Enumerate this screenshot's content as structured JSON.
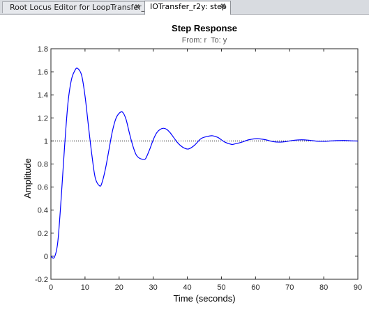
{
  "tabs": [
    {
      "label": "Root Locus Editor for LoopTransfer_C",
      "close": "✖",
      "active": false
    },
    {
      "label": "IOTransfer_r2y: step",
      "close": "✖",
      "active": true
    }
  ],
  "colors": {
    "response_line": "#0000ff",
    "reference_line": "#000000",
    "axes": "#262626",
    "subtitle": "#595959"
  },
  "chart_data": {
    "type": "line",
    "title": "Step Response",
    "subtitle": "From: r  To: y",
    "xlabel": "Time (seconds)",
    "ylabel": "Amplitude",
    "xlim": [
      0,
      90
    ],
    "ylim": [
      -0.2,
      1.8
    ],
    "xticks": [
      0,
      10,
      20,
      30,
      40,
      50,
      60,
      70,
      80,
      90
    ],
    "yticks": [
      -0.2,
      0,
      0.2,
      0.4,
      0.6,
      0.8,
      1,
      1.2,
      1.4,
      1.6,
      1.8
    ],
    "xtick_labels": [
      "0",
      "10",
      "20",
      "30",
      "40",
      "50",
      "60",
      "70",
      "80",
      "90"
    ],
    "ytick_labels": [
      "-0.2",
      "0",
      "0.2",
      "0.4",
      "0.6",
      "0.8",
      "1",
      "1.2",
      "1.4",
      "1.6",
      "1.8"
    ],
    "grid": false,
    "reference_level": 1,
    "series": [
      {
        "x": [
          0,
          1,
          2,
          3,
          4,
          5,
          6,
          7,
          7.8,
          9,
          10,
          11,
          12,
          13,
          14.3,
          15,
          16,
          17,
          18,
          19,
          20,
          21,
          22,
          23,
          24,
          25,
          26,
          27.4,
          28,
          29,
          30,
          31,
          32,
          33,
          34,
          35,
          36,
          37,
          38,
          39,
          40.3,
          42,
          44,
          46,
          47.4,
          49,
          51,
          53,
          54,
          56,
          58,
          60.5,
          63,
          65,
          67,
          69,
          71,
          73.5,
          76,
          78,
          80,
          82,
          84,
          86,
          88,
          90
        ],
        "values": [
          0,
          -0.01,
          0.12,
          0.5,
          0.95,
          1.33,
          1.53,
          1.61,
          1.63,
          1.57,
          1.39,
          1.13,
          0.88,
          0.68,
          0.61,
          0.64,
          0.76,
          0.92,
          1.08,
          1.19,
          1.24,
          1.25,
          1.19,
          1.07,
          0.96,
          0.88,
          0.85,
          0.84,
          0.86,
          0.93,
          1.01,
          1.07,
          1.1,
          1.11,
          1.1,
          1.07,
          1.03,
          0.99,
          0.96,
          0.94,
          0.93,
          0.96,
          1.02,
          1.04,
          1.045,
          1.03,
          0.99,
          0.97,
          0.975,
          0.99,
          1.01,
          1.02,
          1.01,
          0.995,
          0.99,
          0.995,
          1.005,
          1.01,
          1.005,
          0.998,
          0.997,
          1.0,
          1.003,
          1.004,
          1.001,
          0.999
        ]
      }
    ]
  }
}
